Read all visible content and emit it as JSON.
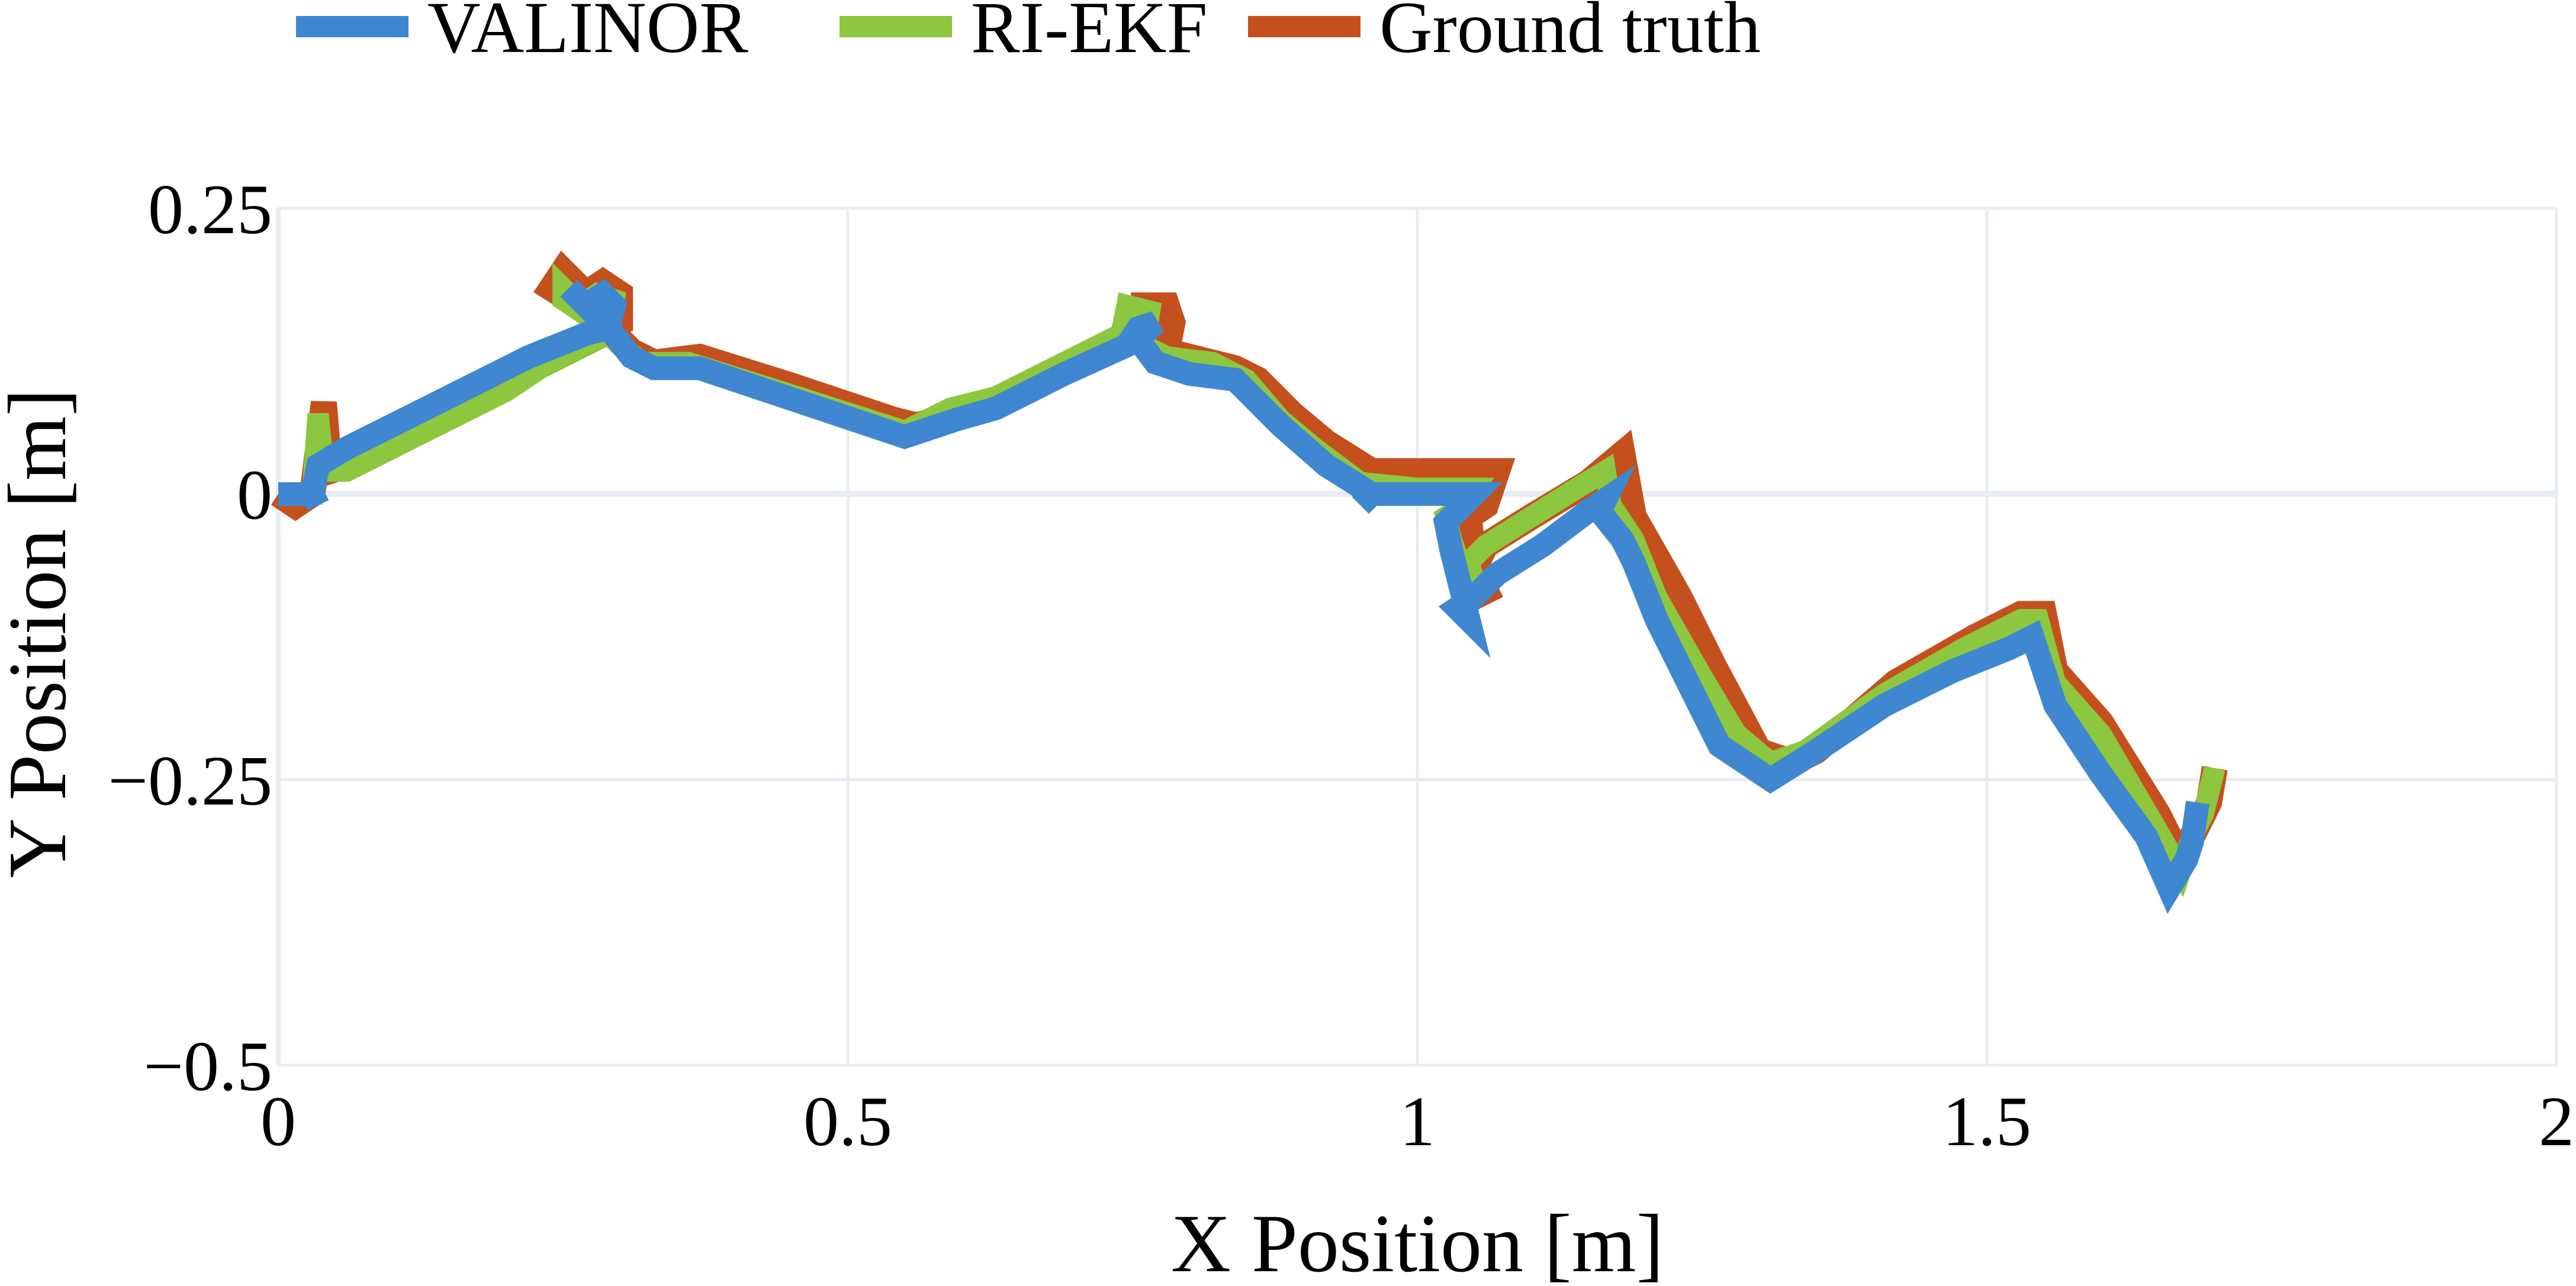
{
  "chart_data": {
    "type": "line",
    "title": "",
    "xlabel": "X Position [m]",
    "ylabel": "Y Position [m]",
    "xlim": [
      0,
      2
    ],
    "ylim": [
      -0.5,
      0.25
    ],
    "x_ticks": [
      0,
      0.5,
      1,
      1.5,
      2
    ],
    "x_tick_labels": [
      "0",
      "0.5",
      "1",
      "1.5",
      "2"
    ],
    "y_ticks": [
      0.25,
      0,
      -0.25,
      -0.5
    ],
    "y_tick_labels": [
      "0.25",
      "0",
      "−0.25",
      "−0.5"
    ],
    "grid": true,
    "legend_position": "top-left, horizontal, above plot",
    "series": [
      {
        "name": "Ground truth",
        "color": "#C4501E",
        "points": [
          [
            0.0,
            0.0
          ],
          [
            0.015,
            -0.01
          ],
          [
            0.03,
            0.0
          ],
          [
            0.04,
            0.08
          ],
          [
            0.045,
            0.02
          ],
          [
            0.06,
            0.025
          ],
          [
            0.12,
            0.055
          ],
          [
            0.2,
            0.095
          ],
          [
            0.23,
            0.115
          ],
          [
            0.27,
            0.135
          ],
          [
            0.3,
            0.15
          ],
          [
            0.3,
            0.175
          ],
          [
            0.285,
            0.185
          ],
          [
            0.27,
            0.175
          ],
          [
            0.25,
            0.195
          ],
          [
            0.24,
            0.18
          ],
          [
            0.28,
            0.155
          ],
          [
            0.31,
            0.125
          ],
          [
            0.33,
            0.115
          ],
          [
            0.37,
            0.12
          ],
          [
            0.45,
            0.095
          ],
          [
            0.54,
            0.065
          ],
          [
            0.56,
            0.06
          ],
          [
            0.6,
            0.07
          ],
          [
            0.64,
            0.085
          ],
          [
            0.69,
            0.11
          ],
          [
            0.76,
            0.145
          ],
          [
            0.76,
            0.165
          ],
          [
            0.78,
            0.165
          ],
          [
            0.785,
            0.15
          ],
          [
            0.78,
            0.125
          ],
          [
            0.8,
            0.12
          ],
          [
            0.84,
            0.11
          ],
          [
            0.86,
            0.1
          ],
          [
            0.89,
            0.07
          ],
          [
            0.92,
            0.045
          ],
          [
            0.96,
            0.02
          ],
          [
            1.0,
            0.02
          ],
          [
            1.07,
            0.02
          ],
          [
            1.06,
            -0.01
          ],
          [
            1.045,
            -0.02
          ],
          [
            1.05,
            -0.06
          ],
          [
            1.05,
            -0.09
          ],
          [
            1.06,
            -0.085
          ],
          [
            1.05,
            -0.065
          ],
          [
            1.06,
            -0.045
          ],
          [
            1.1,
            -0.02
          ],
          [
            1.15,
            0.01
          ],
          [
            1.18,
            0.035
          ],
          [
            1.19,
            -0.02
          ],
          [
            1.23,
            -0.09
          ],
          [
            1.26,
            -0.15
          ],
          [
            1.3,
            -0.225
          ],
          [
            1.33,
            -0.235
          ],
          [
            1.35,
            -0.225
          ],
          [
            1.42,
            -0.165
          ],
          [
            1.49,
            -0.125
          ],
          [
            1.53,
            -0.105
          ],
          [
            1.55,
            -0.105
          ],
          [
            1.56,
            -0.155
          ],
          [
            1.6,
            -0.2
          ],
          [
            1.65,
            -0.28
          ],
          [
            1.67,
            -0.32
          ],
          [
            1.685,
            -0.29
          ],
          [
            1.695,
            -0.27
          ],
          [
            1.7,
            -0.24
          ]
        ]
      },
      {
        "name": "RI-EKF",
        "color": "#8DC63F",
        "points": [
          [
            0.0,
            0.0
          ],
          [
            0.015,
            0.0
          ],
          [
            0.03,
            0.0
          ],
          [
            0.035,
            0.07
          ],
          [
            0.04,
            0.02
          ],
          [
            0.06,
            0.02
          ],
          [
            0.12,
            0.05
          ],
          [
            0.2,
            0.09
          ],
          [
            0.23,
            0.11
          ],
          [
            0.27,
            0.13
          ],
          [
            0.29,
            0.14
          ],
          [
            0.295,
            0.17
          ],
          [
            0.28,
            0.175
          ],
          [
            0.265,
            0.165
          ],
          [
            0.25,
            0.18
          ],
          [
            0.25,
            0.17
          ],
          [
            0.28,
            0.15
          ],
          [
            0.3,
            0.13
          ],
          [
            0.32,
            0.115
          ],
          [
            0.36,
            0.115
          ],
          [
            0.44,
            0.09
          ],
          [
            0.55,
            0.055
          ],
          [
            0.59,
            0.075
          ],
          [
            0.63,
            0.085
          ],
          [
            0.69,
            0.115
          ],
          [
            0.74,
            0.14
          ],
          [
            0.745,
            0.165
          ],
          [
            0.765,
            0.16
          ],
          [
            0.76,
            0.13
          ],
          [
            0.78,
            0.12
          ],
          [
            0.82,
            0.115
          ],
          [
            0.85,
            0.1
          ],
          [
            0.88,
            0.065
          ],
          [
            0.91,
            0.04
          ],
          [
            0.95,
            0.01
          ],
          [
            1.0,
            0.005
          ],
          [
            1.05,
            0.005
          ],
          [
            1.04,
            -0.01
          ],
          [
            1.025,
            -0.02
          ],
          [
            1.03,
            -0.04
          ],
          [
            1.04,
            -0.07
          ],
          [
            1.04,
            -0.1
          ],
          [
            1.05,
            -0.075
          ],
          [
            1.045,
            -0.06
          ],
          [
            1.06,
            -0.045
          ],
          [
            1.1,
            -0.02
          ],
          [
            1.14,
            0.005
          ],
          [
            1.165,
            0.02
          ],
          [
            1.17,
            -0.01
          ],
          [
            1.19,
            -0.04
          ],
          [
            1.21,
            -0.09
          ],
          [
            1.25,
            -0.16
          ],
          [
            1.28,
            -0.21
          ],
          [
            1.31,
            -0.235
          ],
          [
            1.34,
            -0.225
          ],
          [
            1.41,
            -0.175
          ],
          [
            1.48,
            -0.135
          ],
          [
            1.53,
            -0.11
          ],
          [
            1.545,
            -0.11
          ],
          [
            1.56,
            -0.165
          ],
          [
            1.6,
            -0.21
          ],
          [
            1.65,
            -0.295
          ],
          [
            1.67,
            -0.33
          ],
          [
            1.68,
            -0.3
          ],
          [
            1.69,
            -0.28
          ],
          [
            1.7,
            -0.24
          ]
        ]
      },
      {
        "name": "VALINOR",
        "color": "#3F87D0",
        "points": [
          [
            0.0,
            0.0
          ],
          [
            0.015,
            0.0
          ],
          [
            0.03,
            0.0
          ],
          [
            0.035,
            -0.01
          ],
          [
            0.03,
            0.0
          ],
          [
            0.035,
            0.025
          ],
          [
            0.06,
            0.04
          ],
          [
            0.12,
            0.07
          ],
          [
            0.18,
            0.1
          ],
          [
            0.22,
            0.12
          ],
          [
            0.27,
            0.14
          ],
          [
            0.29,
            0.145
          ],
          [
            0.295,
            0.165
          ],
          [
            0.285,
            0.175
          ],
          [
            0.27,
            0.165
          ],
          [
            0.255,
            0.18
          ],
          [
            0.29,
            0.145
          ],
          [
            0.31,
            0.12
          ],
          [
            0.33,
            0.11
          ],
          [
            0.37,
            0.11
          ],
          [
            0.46,
            0.08
          ],
          [
            0.55,
            0.05
          ],
          [
            0.595,
            0.065
          ],
          [
            0.63,
            0.075
          ],
          [
            0.69,
            0.105
          ],
          [
            0.745,
            0.13
          ],
          [
            0.755,
            0.145
          ],
          [
            0.77,
            0.15
          ],
          [
            0.755,
            0.135
          ],
          [
            0.77,
            0.115
          ],
          [
            0.8,
            0.105
          ],
          [
            0.84,
            0.1
          ],
          [
            0.88,
            0.06
          ],
          [
            0.92,
            0.025
          ],
          [
            0.96,
            0.0
          ],
          [
            0.95,
            -0.01
          ],
          [
            0.96,
            0.0
          ],
          [
            1.0,
            0.0
          ],
          [
            1.05,
            0.0
          ],
          [
            1.04,
            -0.01
          ],
          [
            1.025,
            -0.025
          ],
          [
            1.03,
            -0.05
          ],
          [
            1.04,
            -0.09
          ],
          [
            1.045,
            -0.11
          ],
          [
            1.035,
            -0.1
          ],
          [
            1.05,
            -0.09
          ],
          [
            1.07,
            -0.07
          ],
          [
            1.11,
            -0.045
          ],
          [
            1.15,
            -0.015
          ],
          [
            1.165,
            -0.005
          ],
          [
            1.16,
            -0.015
          ],
          [
            1.18,
            -0.04
          ],
          [
            1.19,
            -0.06
          ],
          [
            1.21,
            -0.11
          ],
          [
            1.24,
            -0.17
          ],
          [
            1.265,
            -0.22
          ],
          [
            1.31,
            -0.25
          ],
          [
            1.35,
            -0.225
          ],
          [
            1.41,
            -0.185
          ],
          [
            1.47,
            -0.155
          ],
          [
            1.52,
            -0.135
          ],
          [
            1.54,
            -0.125
          ],
          [
            1.56,
            -0.185
          ],
          [
            1.6,
            -0.245
          ],
          [
            1.64,
            -0.3
          ],
          [
            1.66,
            -0.345
          ],
          [
            1.675,
            -0.32
          ],
          [
            1.68,
            -0.305
          ],
          [
            1.685,
            -0.27
          ]
        ]
      }
    ]
  }
}
